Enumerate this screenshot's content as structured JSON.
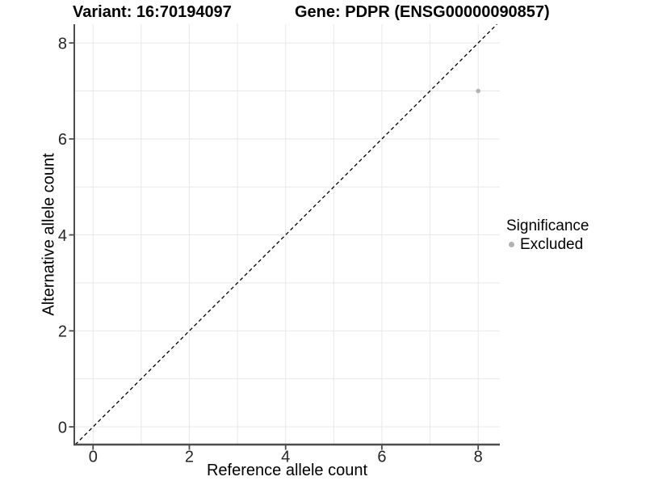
{
  "titles": {
    "variant": "Variant: 16:70194097",
    "gene": "Gene: PDPR (ENSG00000090857)"
  },
  "chart_data": {
    "type": "scatter",
    "title": "Variant: 16:70194097  Gene: PDPR (ENSG00000090857)",
    "xlabel": "Reference allele count",
    "ylabel": "Alternative allele count",
    "xlim": [
      -0.39,
      8.45
    ],
    "ylim": [
      -0.37,
      8.39
    ],
    "xticks": [
      0,
      2,
      4,
      6,
      8
    ],
    "yticks": [
      0,
      2,
      4,
      6,
      8
    ],
    "grid_interval": 1,
    "grid": true,
    "points": [
      {
        "x": 8,
        "y": 7,
        "significance": "Excluded"
      }
    ],
    "reference_line": {
      "style": "dashed",
      "equation": "y = x"
    },
    "legend": {
      "title": "Significance",
      "position": "right",
      "items": [
        {
          "label": "Excluded",
          "color": "#b3b3b3"
        }
      ]
    },
    "colors": {
      "point_excluded": "#b3b3b3",
      "grid": "#e7e7e7",
      "axis": "#4d4d4d",
      "reference_line": "#000000",
      "background": "#ffffff"
    }
  }
}
